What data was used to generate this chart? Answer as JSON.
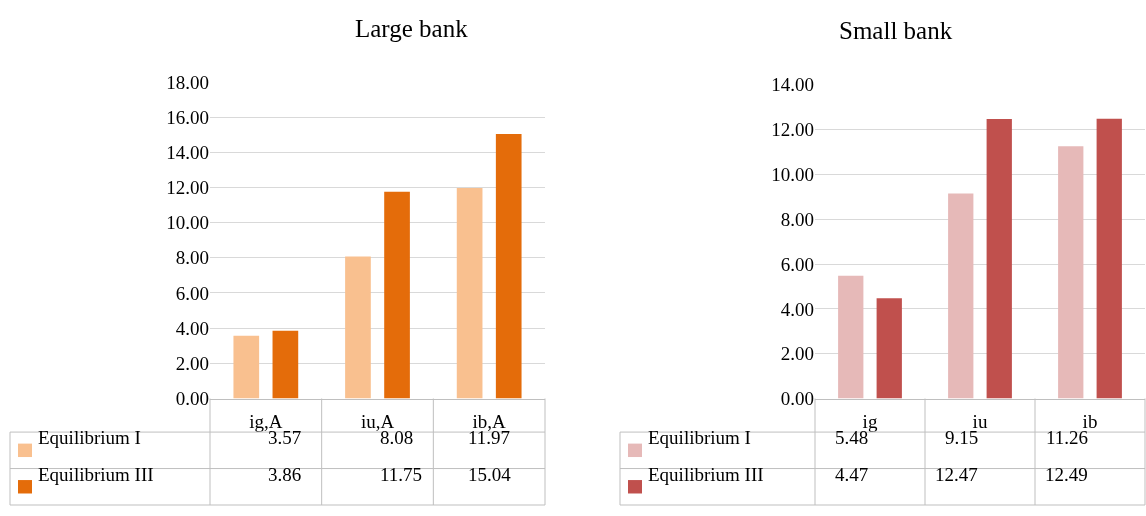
{
  "chart_data": [
    {
      "type": "bar",
      "title": "Large bank",
      "categories": [
        "ig,A",
        "iu,A",
        "ib,A"
      ],
      "series": [
        {
          "name": "Equilibrium I",
          "color": "#f9c08f",
          "values": [
            3.57,
            8.08,
            11.97
          ]
        },
        {
          "name": "Equilibrium III",
          "color": "#e46c0a",
          "values": [
            3.86,
            11.75,
            15.04
          ]
        }
      ],
      "ylim": [
        0,
        18
      ],
      "yticks": [
        {
          "value": 0,
          "label": "0.00"
        },
        {
          "value": 2,
          "label": "2.00"
        },
        {
          "value": 4,
          "label": "4.00"
        },
        {
          "value": 6,
          "label": "6.00"
        },
        {
          "value": 8,
          "label": "8.00"
        },
        {
          "value": 10,
          "label": "10.00"
        },
        {
          "value": 12,
          "label": "12.00"
        },
        {
          "value": 14,
          "label": "14.00"
        },
        {
          "value": 16,
          "label": "16.00"
        },
        {
          "value": 18,
          "label": "18.00"
        }
      ],
      "grid": "y",
      "legend": "bottom",
      "data_labels": true
    },
    {
      "type": "bar",
      "title": "Small bank",
      "categories": [
        "ig",
        "iu",
        "ib"
      ],
      "series": [
        {
          "name": "Equilibrium I",
          "color": "#e6b9b8",
          "values": [
            5.48,
            9.15,
            11.26
          ]
        },
        {
          "name": "Equilibrium III",
          "color": "#c0504d",
          "values": [
            4.47,
            12.47,
            12.49
          ]
        }
      ],
      "ylim": [
        0,
        14
      ],
      "yticks": [
        {
          "value": 0,
          "label": "0.00"
        },
        {
          "value": 2,
          "label": "2.00"
        },
        {
          "value": 4,
          "label": "4.00"
        },
        {
          "value": 6,
          "label": "6.00"
        },
        {
          "value": 8,
          "label": "8.00"
        },
        {
          "value": 10,
          "label": "10.00"
        },
        {
          "value": 12,
          "label": "12.00"
        },
        {
          "value": 14,
          "label": "14.00"
        }
      ],
      "grid": "y",
      "legend": "bottom",
      "data_labels": true
    }
  ]
}
